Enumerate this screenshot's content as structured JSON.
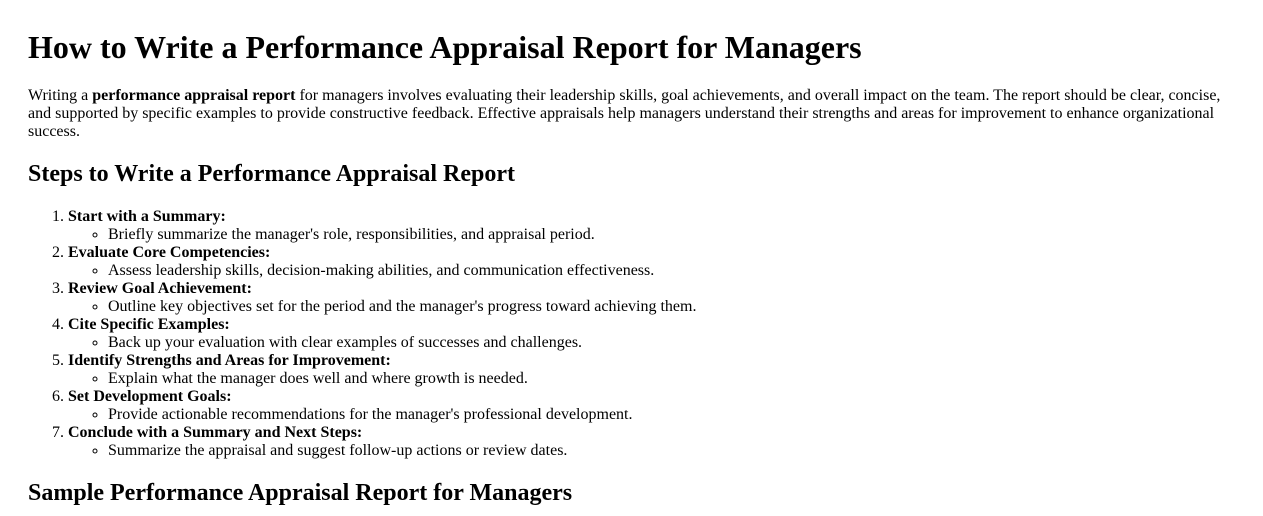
{
  "title": "How to Write a Performance Appraisal Report for Managers",
  "intro": {
    "prefix": "Writing a ",
    "bold": "performance appraisal report",
    "suffix": " for managers involves evaluating their leadership skills, goal achievements, and overall impact on the team. The report should be clear, concise, and supported by specific examples to provide constructive feedback. Effective appraisals help managers understand their strengths and areas for improvement to enhance organizational success."
  },
  "steps_heading": "Steps to Write a Performance Appraisal Report",
  "steps": [
    {
      "title": "Start with a Summary:",
      "detail": "Briefly summarize the manager's role, responsibilities, and appraisal period."
    },
    {
      "title": "Evaluate Core Competencies:",
      "detail": "Assess leadership skills, decision-making abilities, and communication effectiveness."
    },
    {
      "title": "Review Goal Achievement:",
      "detail": "Outline key objectives set for the period and the manager's progress toward achieving them."
    },
    {
      "title": "Cite Specific Examples:",
      "detail": "Back up your evaluation with clear examples of successes and challenges."
    },
    {
      "title": "Identify Strengths and Areas for Improvement:",
      "detail": "Explain what the manager does well and where growth is needed."
    },
    {
      "title": "Set Development Goals:",
      "detail": "Provide actionable recommendations for the manager's professional development."
    },
    {
      "title": "Conclude with a Summary and Next Steps:",
      "detail": "Summarize the appraisal and suggest follow-up actions or review dates."
    }
  ],
  "sample_heading": "Sample Performance Appraisal Report for Managers"
}
